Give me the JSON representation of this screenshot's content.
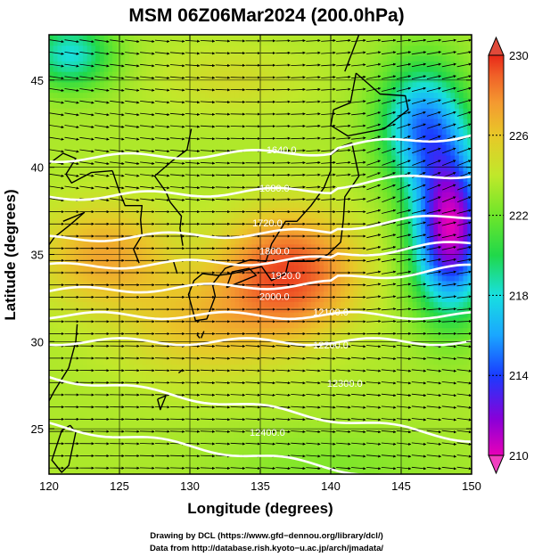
{
  "title": "MSM 06Z06Mar2024 (200.0hPa)",
  "x_axis": {
    "label": "Longitude (degrees)",
    "range": [
      120,
      150
    ],
    "ticks": [
      "120",
      "125",
      "130",
      "135",
      "140",
      "145",
      "150"
    ]
  },
  "y_axis": {
    "label": "Latitude  (degrees)",
    "range": [
      22.4,
      47.6
    ],
    "ticks": [
      "25",
      "30",
      "35",
      "40",
      "45"
    ]
  },
  "colorbar": {
    "range": [
      210,
      230
    ],
    "ticks": [
      "230",
      "226",
      "222",
      "218",
      "214",
      "210"
    ],
    "extend": "both",
    "colors": [
      "#e800b8",
      "#8a00d8",
      "#1a3cff",
      "#1aa6ff",
      "#18e0e0",
      "#20d84a",
      "#6ee62a",
      "#c0e82a",
      "#e8c828",
      "#f49a30",
      "#f06028",
      "#e82818"
    ]
  },
  "credits": {
    "line1": "Drawing by DCL (https://www.gfd−dennou.org/library/dcl/)",
    "line2": "Data from http://database.rish.kyoto−u.ac.jp/arch/jmadata/"
  },
  "contour_labels": [
    "1640.0",
    "1680.0",
    "1720.0",
    "1800.0",
    "1920.0",
    "2000.0",
    "12100.0",
    "12200.0",
    "12300.0",
    "12400.0"
  ],
  "chart_data": {
    "type": "heatmap",
    "variable": "200.0hPa",
    "units_note": "colorbar 210–230",
    "field_notes": "warm maximum (~228–230) near 137E 34N; cold minimum (~210–212) near 148E 37N; wind vectors westerly to west-southwesterly across domain",
    "key_values": [
      {
        "lon": 137,
        "lat": 34,
        "value": 229
      },
      {
        "lon": 124,
        "lat": 35,
        "value": 226
      },
      {
        "lon": 148,
        "lat": 37,
        "value": 211
      },
      {
        "lon": 146,
        "lat": 42,
        "value": 215
      },
      {
        "lon": 122,
        "lat": 46,
        "value": 218
      },
      {
        "lon": 130,
        "lat": 25,
        "value": 222
      }
    ]
  }
}
